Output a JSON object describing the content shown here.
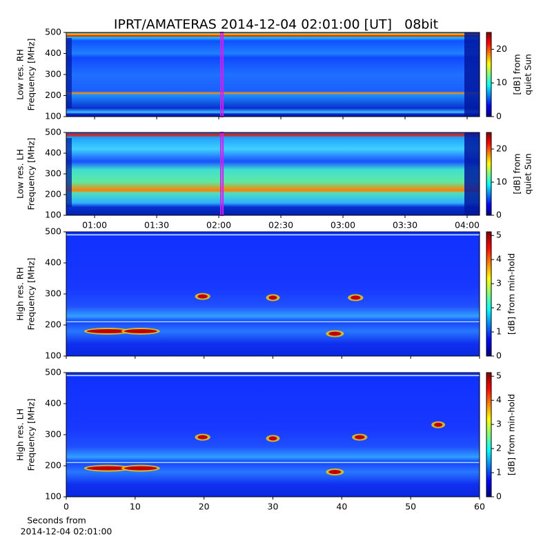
{
  "title": "IPRT/AMATERAS 2014-12-04 02:01:00 [UT]   08bit",
  "xlabel": [
    "Seconds from",
    "2014-12-04 02:01:00"
  ],
  "chart_data": [
    {
      "type": "heatmap",
      "ylabel": [
        "Low res. RH",
        "Frequency [MHz]"
      ],
      "xlim": [
        46.3,
        246
      ],
      "ylim": [
        100,
        500
      ],
      "yticks": [
        100,
        200,
        300,
        400,
        500
      ],
      "marker": [
        121,
        122
      ],
      "marker_color": "#d020f0",
      "colorbar": {
        "label": [
          "[dB] from",
          "quiet Sun"
        ],
        "lim": [
          0,
          25
        ],
        "ticks": [
          0,
          10,
          20
        ]
      }
    },
    {
      "type": "heatmap",
      "ylabel": [
        "Low res. LH",
        "Frequency [MHz]"
      ],
      "xlim": [
        46.3,
        246
      ],
      "ylim": [
        100,
        500
      ],
      "yticks": [
        100,
        200,
        300,
        400,
        500
      ],
      "xticks": [
        {
          "value": 60,
          "label": "01:00"
        },
        {
          "value": 90,
          "label": "01:30"
        },
        {
          "value": 120,
          "label": "02:00"
        },
        {
          "value": 150,
          "label": "02:30"
        },
        {
          "value": 180,
          "label": "03:00"
        },
        {
          "value": 210,
          "label": "03:30"
        },
        {
          "value": 240,
          "label": "04:00"
        }
      ],
      "marker": [
        121,
        122
      ],
      "marker_color": "#d020f0",
      "colorbar": {
        "label": [
          "[dB] from",
          "quiet Sun"
        ],
        "lim": [
          0,
          25
        ],
        "ticks": [
          0,
          10,
          20
        ]
      }
    },
    {
      "type": "heatmap",
      "ylabel": [
        "High res. RH",
        "Frequency [MHz]"
      ],
      "xlim": [
        0,
        60
      ],
      "ylim": [
        100,
        500
      ],
      "yticks": [
        100,
        200,
        300,
        400,
        500
      ],
      "colorbar": {
        "label": [
          "[dB] from min-hold"
        ],
        "lim": [
          0,
          5.15
        ],
        "ticks": [
          0,
          1,
          2,
          3,
          4,
          5
        ]
      }
    },
    {
      "type": "heatmap",
      "ylabel": [
        "High res. LH",
        "Frequency [MHz]"
      ],
      "xlim": [
        0,
        60
      ],
      "ylim": [
        100,
        500
      ],
      "yticks": [
        100,
        200,
        300,
        400,
        500
      ],
      "xticks": [
        0,
        10,
        20,
        30,
        40,
        50,
        60
      ],
      "colorbar": {
        "label": [
          "[dB] from min-hold"
        ],
        "lim": [
          0,
          5.15
        ],
        "ticks": [
          0,
          1,
          2,
          3,
          4,
          5
        ]
      }
    }
  ]
}
